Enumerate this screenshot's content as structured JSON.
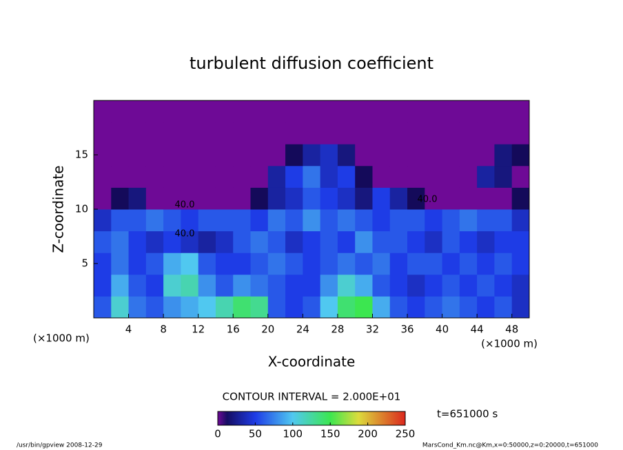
{
  "chart_data": {
    "type": "heatmap",
    "title": "turbulent diffusion coefficient",
    "xlabel": "X-coordinate",
    "ylabel": "Z-coordinate",
    "x_unit": "(×1000 m)",
    "y_unit": "(×1000 m)",
    "xbins": [
      0,
      2,
      4,
      6,
      8,
      10,
      12,
      14,
      16,
      18,
      20,
      22,
      24,
      26,
      28,
      30,
      32,
      34,
      36,
      38,
      40,
      42,
      44,
      46,
      48,
      50
    ],
    "ybins": [
      0,
      2,
      4,
      6,
      8,
      10,
      12,
      14,
      16,
      18,
      20
    ],
    "z": [
      [
        60,
        110,
        70,
        60,
        80,
        90,
        100,
        120,
        140,
        130,
        60,
        50,
        60,
        100,
        140,
        150,
        90,
        60,
        50,
        60,
        70,
        60,
        50,
        60,
        40
      ],
      [
        50,
        90,
        60,
        50,
        110,
        120,
        80,
        60,
        80,
        70,
        60,
        50,
        50,
        80,
        110,
        90,
        60,
        50,
        40,
        50,
        60,
        50,
        60,
        50,
        40
      ],
      [
        50,
        70,
        50,
        60,
        90,
        100,
        60,
        50,
        50,
        60,
        70,
        60,
        50,
        60,
        70,
        60,
        70,
        50,
        60,
        60,
        50,
        60,
        50,
        60,
        50
      ],
      [
        60,
        70,
        50,
        40,
        50,
        40,
        30,
        40,
        60,
        70,
        60,
        40,
        50,
        60,
        50,
        80,
        60,
        60,
        50,
        40,
        60,
        50,
        40,
        50,
        50
      ],
      [
        40,
        60,
        60,
        70,
        60,
        50,
        60,
        60,
        60,
        50,
        70,
        60,
        80,
        60,
        70,
        60,
        50,
        60,
        60,
        50,
        60,
        70,
        60,
        60,
        40
      ],
      [
        0,
        10,
        20,
        0,
        0,
        0,
        0,
        0,
        0,
        10,
        30,
        40,
        60,
        50,
        40,
        20,
        50,
        30,
        10,
        0,
        0,
        0,
        0,
        0,
        10
      ],
      [
        0,
        0,
        0,
        0,
        0,
        0,
        0,
        0,
        0,
        0,
        30,
        50,
        70,
        40,
        50,
        10,
        0,
        0,
        0,
        0,
        0,
        0,
        30,
        20,
        0
      ],
      [
        0,
        0,
        0,
        0,
        0,
        0,
        0,
        0,
        0,
        0,
        0,
        10,
        30,
        40,
        20,
        0,
        0,
        0,
        0,
        0,
        0,
        0,
        0,
        20,
        10
      ],
      [
        0,
        0,
        0,
        0,
        0,
        0,
        0,
        0,
        0,
        0,
        0,
        0,
        0,
        0,
        0,
        0,
        0,
        0,
        0,
        0,
        0,
        0,
        0,
        0,
        0
      ],
      [
        0,
        0,
        0,
        0,
        0,
        0,
        0,
        0,
        0,
        0,
        0,
        0,
        0,
        0,
        0,
        0,
        0,
        0,
        0,
        0,
        0,
        0,
        0,
        0,
        0
      ]
    ],
    "xlim": [
      0,
      50
    ],
    "xticks": [
      4,
      8,
      12,
      16,
      20,
      24,
      28,
      32,
      36,
      40,
      44,
      48
    ],
    "ylim": [
      0,
      20
    ],
    "yticks": [
      5,
      10,
      15
    ],
    "clim": [
      0,
      250
    ],
    "cticks": [
      0,
      50,
      100,
      150,
      200,
      250
    ],
    "contour_labels": [
      "40.0",
      "40.0",
      "40.0"
    ],
    "contour_interval": "CONTOUR INTERVAL = 2.000E+01",
    "time_label": "t=651000 s",
    "footer_left": "/usr/bin/gpview  2008-12-29",
    "footer_right": "MarsCond_Km.nc@Km,x=0:50000,z=0:20000,t=651000"
  }
}
